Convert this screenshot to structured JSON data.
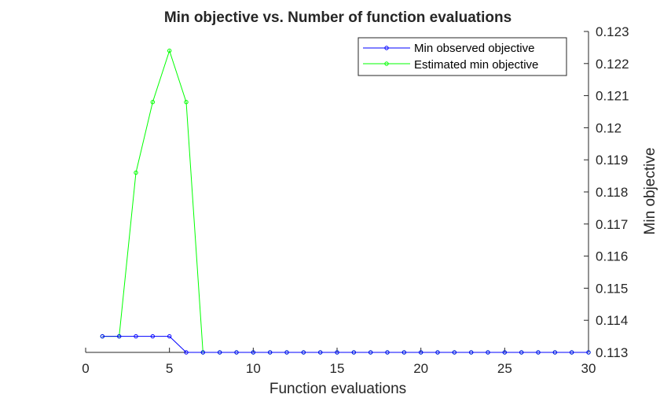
{
  "chart_data": {
    "type": "line",
    "title": "Min objective vs. Number of function evaluations",
    "xlabel": "Function evaluations",
    "ylabel": "Min objective",
    "xlim": [
      0,
      30
    ],
    "ylim": [
      0.113,
      0.123
    ],
    "xticks": [
      0,
      5,
      10,
      15,
      20,
      25,
      30
    ],
    "xtick_labels": [
      "0",
      "5",
      "10",
      "15",
      "20",
      "25",
      "30"
    ],
    "yticks": [
      0.113,
      0.114,
      0.115,
      0.116,
      0.117,
      0.118,
      0.119,
      0.12,
      0.121,
      0.122,
      0.123
    ],
    "ytick_labels": [
      "0.113",
      "0.114",
      "0.115",
      "0.116",
      "0.117",
      "0.118",
      "0.119",
      "0.12",
      "0.121",
      "0.122",
      "0.123"
    ],
    "y_axis_position": "right",
    "grid": false,
    "legend_position": "top-right",
    "x": [
      1,
      2,
      3,
      4,
      5,
      6,
      7,
      8,
      9,
      10,
      11,
      12,
      13,
      14,
      15,
      16,
      17,
      18,
      19,
      20,
      21,
      22,
      23,
      24,
      25,
      26,
      27,
      28,
      29,
      30
    ],
    "series": [
      {
        "name": "Min observed objective",
        "color": "#0000ff",
        "values": [
          0.1135,
          0.1135,
          0.1135,
          0.1135,
          0.1135,
          0.113,
          0.113,
          0.113,
          0.113,
          0.113,
          0.113,
          0.113,
          0.113,
          0.113,
          0.113,
          0.113,
          0.113,
          0.113,
          0.113,
          0.113,
          0.113,
          0.113,
          0.113,
          0.113,
          0.113,
          0.113,
          0.113,
          0.113,
          0.113,
          0.113
        ]
      },
      {
        "name": "Estimated min objective",
        "color": "#00ff00",
        "values": [
          0.1135,
          0.1135,
          0.1186,
          0.1208,
          0.1224,
          0.1208,
          0.113,
          0.113,
          0.113,
          0.113,
          0.113,
          0.113,
          0.113,
          0.113,
          0.113,
          0.113,
          0.113,
          0.113,
          0.113,
          0.113,
          0.113,
          0.113,
          0.113,
          0.113,
          0.113,
          0.113,
          0.113,
          0.113,
          0.113,
          0.113
        ]
      }
    ]
  }
}
